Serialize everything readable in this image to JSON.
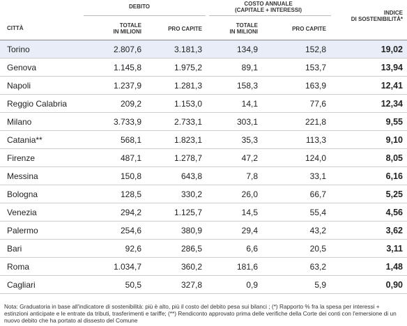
{
  "header": {
    "city": "CITTÀ",
    "debt": "DEBITO",
    "cost": [
      "COSTO ANNUALE",
      "(CAPITALE + INTERESSI)"
    ],
    "debt_total": [
      "TOTALE",
      "IN MILIONI"
    ],
    "debt_per_capita": "PRO CAPITE",
    "cost_total": [
      "TOTALE",
      "IN MILIONI"
    ],
    "cost_per_capita": "PRO CAPITE",
    "index": [
      "INDICE",
      "DI SOSTENIBILITÀ*"
    ]
  },
  "table": {
    "rows": [
      [
        "Torino",
        "2.807,6",
        "3.181,3",
        "134,9",
        "152,8",
        "19,02"
      ],
      [
        "Genova",
        "1.145,8",
        "1.975,2",
        "89,1",
        "153,7",
        "13,94"
      ],
      [
        "Napoli",
        "1.237,9",
        "1.281,3",
        "158,3",
        "163,9",
        "12,41"
      ],
      [
        "Reggio Calabria",
        "209,2",
        "1.153,0",
        "14,1",
        "77,6",
        "12,34"
      ],
      [
        "Milano",
        "3.733,9",
        "2.733,1",
        "303,1",
        "221,8",
        "9,55"
      ],
      [
        "Catania**",
        "568,1",
        "1.823,1",
        "35,3",
        "113,3",
        "9,10"
      ],
      [
        "Firenze",
        "487,1",
        "1.278,7",
        "47,2",
        "124,0",
        "8,05"
      ],
      [
        "Messina",
        "150,8",
        "643,8",
        "7,8",
        "33,1",
        "6,16"
      ],
      [
        "Bologna",
        "128,5",
        "330,2",
        "26,0",
        "66,7",
        "5,25"
      ],
      [
        "Venezia",
        "294,2",
        "1.125,7",
        "14,5",
        "55,4",
        "4,56"
      ],
      [
        "Palermo",
        "254,6",
        "380,9",
        "29,4",
        "43,2",
        "3,62"
      ],
      [
        "Bari",
        "92,6",
        "286,5",
        "6,6",
        "20,5",
        "3,11"
      ],
      [
        "Roma",
        "1.034,7",
        "360,2",
        "181,6",
        "63,2",
        "1,48"
      ],
      [
        "Cagliari",
        "50,5",
        "327,8",
        "0,9",
        "5,9",
        "0,90"
      ]
    ]
  },
  "note": "Nota: Graduatoria in base all'indicatore di sostenibilità: più è alto, più il costo del debito pesa sui bilanci ; (*) Rapporto % fra la spesa per interessi + estinzioni anticipate e le entrate da tributi, trasferimenti e tariffe; (**) Rendiconto approvato prima delle verifiche della Corte dei conti con l'emersione di un nuovo debito che ha portato al dissesto del Comune"
}
